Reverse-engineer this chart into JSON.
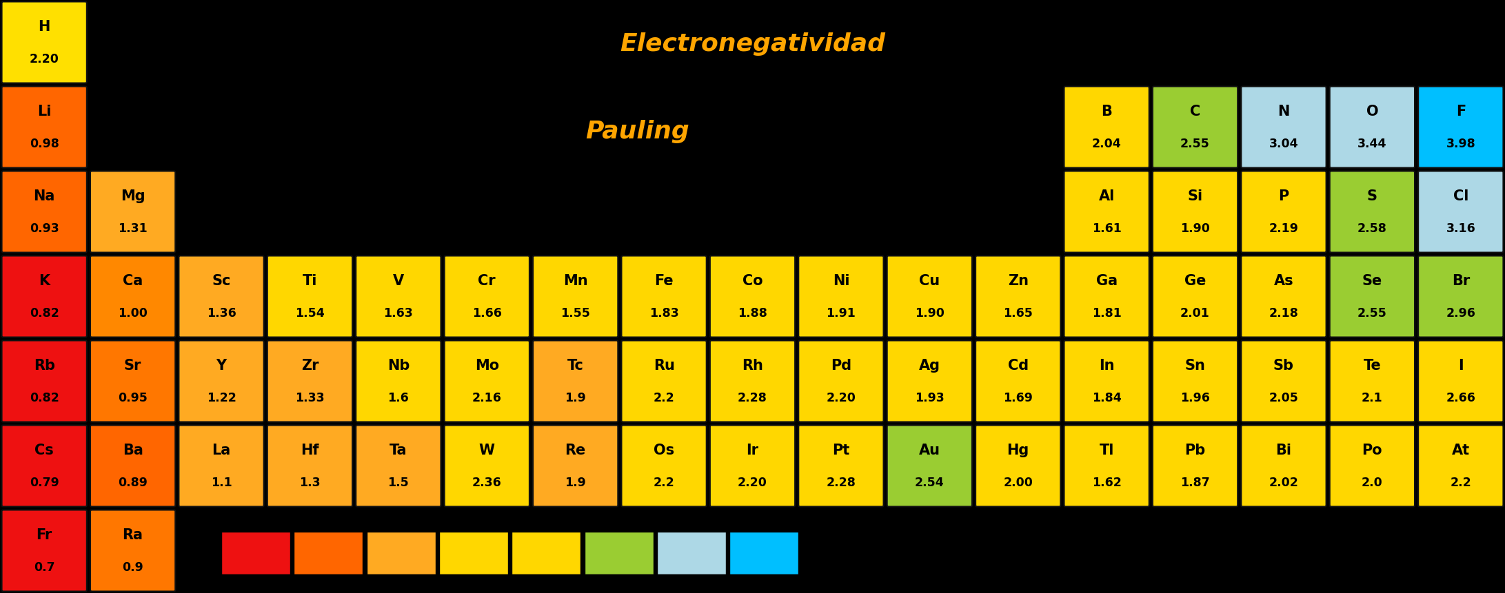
{
  "title1": "Electronegatividad",
  "title2": "Pauling",
  "background_color": "#000000",
  "text_color": "#000000",
  "title_color": "#FFA500",
  "elements": [
    {
      "symbol": "H",
      "value": "2.20",
      "col": 0,
      "row": 0,
      "color": "#FFE000"
    },
    {
      "symbol": "Li",
      "value": "0.98",
      "col": 0,
      "row": 1,
      "color": "#FF6600"
    },
    {
      "symbol": "Na",
      "value": "0.93",
      "col": 0,
      "row": 2,
      "color": "#FF6600"
    },
    {
      "symbol": "K",
      "value": "0.82",
      "col": 0,
      "row": 3,
      "color": "#EE1111"
    },
    {
      "symbol": "Rb",
      "value": "0.82",
      "col": 0,
      "row": 4,
      "color": "#EE1111"
    },
    {
      "symbol": "Cs",
      "value": "0.79",
      "col": 0,
      "row": 5,
      "color": "#EE1111"
    },
    {
      "symbol": "Fr",
      "value": "0.7",
      "col": 0,
      "row": 6,
      "color": "#EE1111"
    },
    {
      "symbol": "Mg",
      "value": "1.31",
      "col": 1,
      "row": 2,
      "color": "#FFAA22"
    },
    {
      "symbol": "Ca",
      "value": "1.00",
      "col": 1,
      "row": 3,
      "color": "#FF8800"
    },
    {
      "symbol": "Sr",
      "value": "0.95",
      "col": 1,
      "row": 4,
      "color": "#FF7700"
    },
    {
      "symbol": "Ba",
      "value": "0.89",
      "col": 1,
      "row": 5,
      "color": "#FF6600"
    },
    {
      "symbol": "Ra",
      "value": "0.9",
      "col": 1,
      "row": 6,
      "color": "#FF7700"
    },
    {
      "symbol": "Sc",
      "value": "1.36",
      "col": 2,
      "row": 3,
      "color": "#FFAA22"
    },
    {
      "symbol": "Y",
      "value": "1.22",
      "col": 2,
      "row": 4,
      "color": "#FFAA22"
    },
    {
      "symbol": "La",
      "value": "1.1",
      "col": 2,
      "row": 5,
      "color": "#FFAA22"
    },
    {
      "symbol": "Ti",
      "value": "1.54",
      "col": 3,
      "row": 3,
      "color": "#FFD700"
    },
    {
      "symbol": "Zr",
      "value": "1.33",
      "col": 3,
      "row": 4,
      "color": "#FFAA22"
    },
    {
      "symbol": "Hf",
      "value": "1.3",
      "col": 3,
      "row": 5,
      "color": "#FFAA22"
    },
    {
      "symbol": "V",
      "value": "1.63",
      "col": 4,
      "row": 3,
      "color": "#FFD700"
    },
    {
      "symbol": "Nb",
      "value": "1.6",
      "col": 4,
      "row": 4,
      "color": "#FFD700"
    },
    {
      "symbol": "Ta",
      "value": "1.5",
      "col": 4,
      "row": 5,
      "color": "#FFAA22"
    },
    {
      "symbol": "Cr",
      "value": "1.66",
      "col": 5,
      "row": 3,
      "color": "#FFD700"
    },
    {
      "symbol": "Mo",
      "value": "2.16",
      "col": 5,
      "row": 4,
      "color": "#FFD700"
    },
    {
      "symbol": "W",
      "value": "2.36",
      "col": 5,
      "row": 5,
      "color": "#FFD700"
    },
    {
      "symbol": "Mn",
      "value": "1.55",
      "col": 6,
      "row": 3,
      "color": "#FFD700"
    },
    {
      "symbol": "Tc",
      "value": "1.9",
      "col": 6,
      "row": 4,
      "color": "#FFAA22"
    },
    {
      "symbol": "Re",
      "value": "1.9",
      "col": 6,
      "row": 5,
      "color": "#FFAA22"
    },
    {
      "symbol": "Fe",
      "value": "1.83",
      "col": 7,
      "row": 3,
      "color": "#FFD700"
    },
    {
      "symbol": "Ru",
      "value": "2.2",
      "col": 7,
      "row": 4,
      "color": "#FFD700"
    },
    {
      "symbol": "Os",
      "value": "2.2",
      "col": 7,
      "row": 5,
      "color": "#FFD700"
    },
    {
      "symbol": "Co",
      "value": "1.88",
      "col": 8,
      "row": 3,
      "color": "#FFD700"
    },
    {
      "symbol": "Rh",
      "value": "2.28",
      "col": 8,
      "row": 4,
      "color": "#FFD700"
    },
    {
      "symbol": "Ir",
      "value": "2.20",
      "col": 8,
      "row": 5,
      "color": "#FFD700"
    },
    {
      "symbol": "Ni",
      "value": "1.91",
      "col": 9,
      "row": 3,
      "color": "#FFD700"
    },
    {
      "symbol": "Pd",
      "value": "2.20",
      "col": 9,
      "row": 4,
      "color": "#FFD700"
    },
    {
      "symbol": "Pt",
      "value": "2.28",
      "col": 9,
      "row": 5,
      "color": "#FFD700"
    },
    {
      "symbol": "Cu",
      "value": "1.90",
      "col": 10,
      "row": 3,
      "color": "#FFD700"
    },
    {
      "symbol": "Ag",
      "value": "1.93",
      "col": 10,
      "row": 4,
      "color": "#FFD700"
    },
    {
      "symbol": "Au",
      "value": "2.54",
      "col": 10,
      "row": 5,
      "color": "#9ACD32"
    },
    {
      "symbol": "Zn",
      "value": "1.65",
      "col": 11,
      "row": 3,
      "color": "#FFD700"
    },
    {
      "symbol": "Cd",
      "value": "1.69",
      "col": 11,
      "row": 4,
      "color": "#FFD700"
    },
    {
      "symbol": "Hg",
      "value": "2.00",
      "col": 11,
      "row": 5,
      "color": "#FFD700"
    },
    {
      "symbol": "B",
      "value": "2.04",
      "col": 12,
      "row": 1,
      "color": "#FFD700"
    },
    {
      "symbol": "Al",
      "value": "1.61",
      "col": 12,
      "row": 2,
      "color": "#FFD700"
    },
    {
      "symbol": "Ga",
      "value": "1.81",
      "col": 12,
      "row": 3,
      "color": "#FFD700"
    },
    {
      "symbol": "In",
      "value": "1.84",
      "col": 12,
      "row": 4,
      "color": "#FFD700"
    },
    {
      "symbol": "Tl",
      "value": "1.62",
      "col": 12,
      "row": 5,
      "color": "#FFD700"
    },
    {
      "symbol": "C",
      "value": "2.55",
      "col": 13,
      "row": 1,
      "color": "#9ACD32"
    },
    {
      "symbol": "Si",
      "value": "1.90",
      "col": 13,
      "row": 2,
      "color": "#FFD700"
    },
    {
      "symbol": "Ge",
      "value": "2.01",
      "col": 13,
      "row": 3,
      "color": "#FFD700"
    },
    {
      "symbol": "Sn",
      "value": "1.96",
      "col": 13,
      "row": 4,
      "color": "#FFD700"
    },
    {
      "symbol": "Pb",
      "value": "1.87",
      "col": 13,
      "row": 5,
      "color": "#FFD700"
    },
    {
      "symbol": "N",
      "value": "3.04",
      "col": 14,
      "row": 1,
      "color": "#ADD8E6"
    },
    {
      "symbol": "P",
      "value": "2.19",
      "col": 14,
      "row": 2,
      "color": "#FFD700"
    },
    {
      "symbol": "As",
      "value": "2.18",
      "col": 14,
      "row": 3,
      "color": "#FFD700"
    },
    {
      "symbol": "Sb",
      "value": "2.05",
      "col": 14,
      "row": 4,
      "color": "#FFD700"
    },
    {
      "symbol": "Bi",
      "value": "2.02",
      "col": 14,
      "row": 5,
      "color": "#FFD700"
    },
    {
      "symbol": "O",
      "value": "3.44",
      "col": 15,
      "row": 1,
      "color": "#ADD8E6"
    },
    {
      "symbol": "S",
      "value": "2.58",
      "col": 15,
      "row": 2,
      "color": "#9ACD32"
    },
    {
      "symbol": "Se",
      "value": "2.55",
      "col": 15,
      "row": 3,
      "color": "#9ACD32"
    },
    {
      "symbol": "Te",
      "value": "2.1",
      "col": 15,
      "row": 4,
      "color": "#FFD700"
    },
    {
      "symbol": "Po",
      "value": "2.0",
      "col": 15,
      "row": 5,
      "color": "#FFD700"
    },
    {
      "symbol": "F",
      "value": "3.98",
      "col": 16,
      "row": 1,
      "color": "#00BFFF"
    },
    {
      "symbol": "Cl",
      "value": "3.16",
      "col": 16,
      "row": 2,
      "color": "#ADD8E6"
    },
    {
      "symbol": "Br",
      "value": "2.96",
      "col": 16,
      "row": 3,
      "color": "#9ACD32"
    },
    {
      "symbol": "I",
      "value": "2.66",
      "col": 16,
      "row": 4,
      "color": "#FFD700"
    },
    {
      "symbol": "At",
      "value": "2.2",
      "col": 16,
      "row": 5,
      "color": "#FFD700"
    }
  ],
  "legend_colors": [
    "#EE1111",
    "#FF6600",
    "#FFAA22",
    "#FFD700",
    "#FFD700",
    "#9ACD32",
    "#ADD8E6",
    "#00BFFF"
  ],
  "n_cols": 17,
  "n_rows": 7
}
